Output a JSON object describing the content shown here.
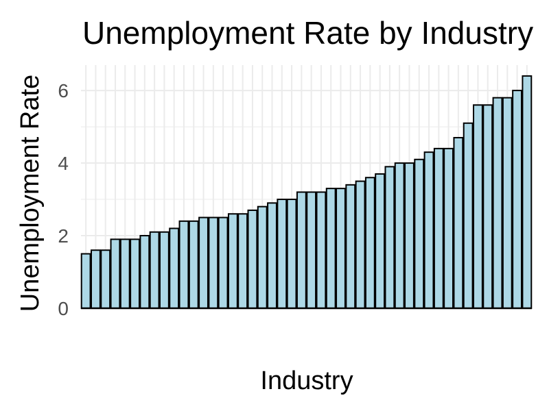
{
  "chart_data": {
    "type": "bar",
    "title": "Unemployment Rate by Industry",
    "xlabel": "Industry",
    "ylabel": "Unemployment Rate",
    "ylim": [
      0,
      6.7
    ],
    "y_ticks": [
      0,
      2,
      4,
      6
    ],
    "grid": true,
    "legend": "none",
    "colors": {
      "bar_fill": "#add8e6",
      "bar_stroke": "#000000",
      "grid": "#ebebeb",
      "tick_text": "#4d4d4d"
    },
    "values": [
      1.5,
      1.6,
      1.6,
      1.9,
      1.9,
      1.9,
      2.0,
      2.1,
      2.1,
      2.2,
      2.4,
      2.4,
      2.5,
      2.5,
      2.5,
      2.6,
      2.6,
      2.7,
      2.8,
      2.9,
      3.0,
      3.0,
      3.2,
      3.2,
      3.2,
      3.3,
      3.3,
      3.4,
      3.5,
      3.6,
      3.7,
      3.9,
      4.0,
      4.0,
      4.1,
      4.3,
      4.4,
      4.4,
      4.7,
      5.1,
      5.6,
      5.6,
      5.8,
      5.8,
      6.0,
      6.4
    ]
  }
}
